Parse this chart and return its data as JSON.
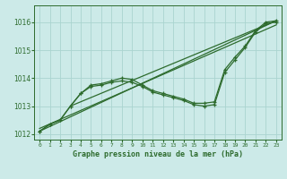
{
  "title": "Graphe pression niveau de la mer (hPa)",
  "bg_color": "#cceae8",
  "grid_color": "#aad4d0",
  "line_color": "#2d6b2d",
  "xlim": [
    -0.5,
    23.5
  ],
  "ylim": [
    1011.8,
    1016.6
  ],
  "yticks": [
    1012,
    1013,
    1014,
    1015,
    1016
  ],
  "xtick_labels": [
    "0",
    "1",
    "2",
    "3",
    "4",
    "5",
    "6",
    "7",
    "8",
    "9",
    "10",
    "11",
    "12",
    "13",
    "14",
    "15",
    "16",
    "17",
    "18",
    "19",
    "20",
    "21",
    "22",
    "23"
  ],
  "series_main": [
    1012.1,
    1012.35,
    1012.5,
    1013.0,
    1013.45,
    1013.75,
    1013.8,
    1013.9,
    1014.0,
    1013.95,
    1013.75,
    1013.55,
    1013.45,
    1013.35,
    1013.25,
    1013.1,
    1013.1,
    1013.15,
    1014.3,
    1014.75,
    1015.15,
    1015.7,
    1016.0,
    1016.05
  ],
  "series2": [
    1012.1,
    1012.35,
    1012.5,
    1013.0,
    1013.45,
    1013.7,
    1013.75,
    1013.85,
    1013.9,
    1013.85,
    1013.7,
    1013.5,
    1013.4,
    1013.3,
    1013.2,
    1013.05,
    1013.0,
    1013.05,
    1014.2,
    1014.65,
    1015.1,
    1015.65,
    1015.95,
    1016.0
  ],
  "trend1_x": [
    0,
    23
  ],
  "trend1_y": [
    1012.1,
    1016.05
  ],
  "trend2_x": [
    0,
    23
  ],
  "trend2_y": [
    1012.2,
    1015.9
  ],
  "trend3_x": [
    3,
    23
  ],
  "trend3_y": [
    1013.0,
    1016.05
  ]
}
